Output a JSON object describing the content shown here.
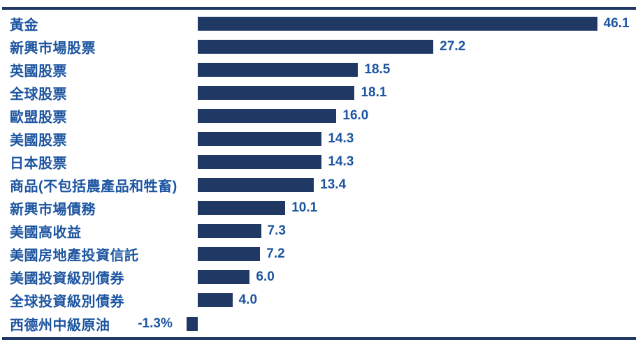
{
  "chart_data": {
    "type": "bar",
    "orientation": "horizontal",
    "title": "",
    "xlabel": "",
    "ylabel": "",
    "xlim": [
      -5,
      50
    ],
    "grid": false,
    "legend": null,
    "categories": [
      "黃金",
      "新興市場股票",
      "英國股票",
      "全球股票",
      "歐盟股票",
      "美國股票",
      "日本股票",
      "商品(不包括農產品和牲畜)",
      "新興市場債務",
      "美國高收益",
      "美國房地產投資信託",
      "美國投資級別債券",
      "全球投資級別債券",
      "西德州中級原油"
    ],
    "values": [
      46.1,
      27.2,
      18.5,
      18.1,
      16.0,
      14.3,
      14.3,
      13.4,
      10.1,
      7.3,
      7.2,
      6.0,
      4.0,
      -1.3
    ],
    "value_labels": [
      "46.1",
      "27.2",
      "18.5",
      "18.1",
      "16.0",
      "14.3",
      "14.3",
      "13.4",
      "10.1",
      "7.3",
      "7.2",
      "6.0",
      "4.0",
      "-1.3%"
    ]
  },
  "colors": {
    "bar": "#1f3864",
    "rule": "#1f3864",
    "text": "#1d55a1",
    "background": "#ffffff"
  }
}
